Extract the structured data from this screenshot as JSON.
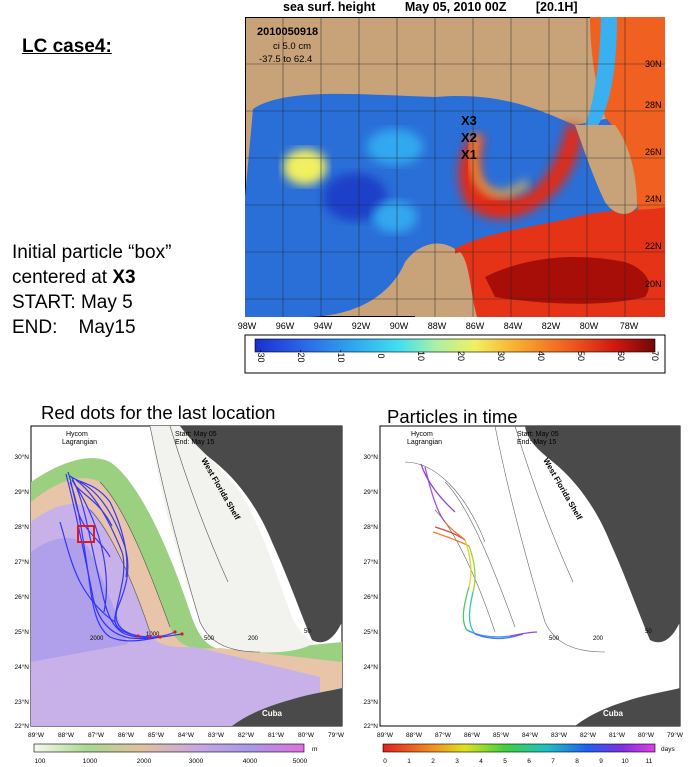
{
  "case_title": "LC case4:",
  "info": {
    "line1": "Initial particle “box”",
    "line2_prefix": "centered at ",
    "line2_bold": "X3",
    "start_label": "START:",
    "start_value": "May 5",
    "end_label": "END:",
    "end_value": "May15"
  },
  "ssh_map": {
    "variable": "sea surf. height",
    "date": "May 05, 2010 00Z",
    "forecast": "[20.1H]",
    "stamp": "2010050918",
    "ci": "ci 5.0 cm",
    "range": "-37.5 to 62.4",
    "markers": [
      "X3",
      "X2",
      "X1"
    ],
    "lat_labels": [
      "30N",
      "28N",
      "26N",
      "24N",
      "22N",
      "20N"
    ],
    "lon_labels": [
      "98W",
      "96W",
      "94W",
      "92W",
      "90W",
      "88W",
      "86W",
      "84W",
      "82W",
      "80W",
      "78W"
    ],
    "colorbar_ticks": [
      "-30",
      "-20",
      "-10",
      "0",
      "10",
      "20",
      "30",
      "40",
      "50",
      "60",
      "70"
    ]
  },
  "left_panel": {
    "title": "Red dots for the last location",
    "header_left": [
      "Hycom",
      "Lagrangian"
    ],
    "header_right": [
      "Start: May 05",
      "End: May 15"
    ],
    "shelf_label": "West Florida Shelf",
    "cuba_label": "Cuba",
    "contour_labels": [
      "500",
      "200",
      "50",
      "2000",
      "1000"
    ],
    "lat_labels": [
      "30°N",
      "29°N",
      "28°N",
      "27°N",
      "26°N",
      "25°N",
      "24°N",
      "23°N",
      "22°N"
    ],
    "lon_labels": [
      "89°W",
      "88°W",
      "87°W",
      "86°W",
      "85°W",
      "84°W",
      "83°W",
      "82°W",
      "81°W",
      "80°W",
      "79°W"
    ],
    "colorbar_ticks": [
      "100",
      "1000",
      "2000",
      "3000",
      "4000",
      "5000"
    ],
    "colorbar_unit": "m"
  },
  "right_panel": {
    "title": "Particles in time",
    "header_left": [
      "Hycom",
      "Lagrangian"
    ],
    "header_right": [
      "Start: May 05",
      "End: May 15"
    ],
    "shelf_label": "West Florida Shelf",
    "cuba_label": "Cuba",
    "contour_labels": [
      "500",
      "200",
      "50"
    ],
    "lat_labels": [
      "30°N",
      "29°N",
      "28°N",
      "27°N",
      "26°N",
      "25°N",
      "24°N",
      "23°N",
      "22°N"
    ],
    "lon_labels": [
      "89°W",
      "88°W",
      "87°W",
      "86°W",
      "85°W",
      "84°W",
      "83°W",
      "82°W",
      "81°W",
      "80°W",
      "79°W"
    ],
    "colorbar_ticks": [
      "0",
      "1",
      "2",
      "3",
      "4",
      "5",
      "6",
      "7",
      "8",
      "9",
      "10",
      "11"
    ],
    "colorbar_unit": "days"
  },
  "colors": {
    "land": "#c8a37a",
    "land_gray": "#4a4a4a",
    "deep_blue": "#2a5fd8",
    "particle_blue": "#1a22ff",
    "warm_red": "#d81a0a"
  }
}
